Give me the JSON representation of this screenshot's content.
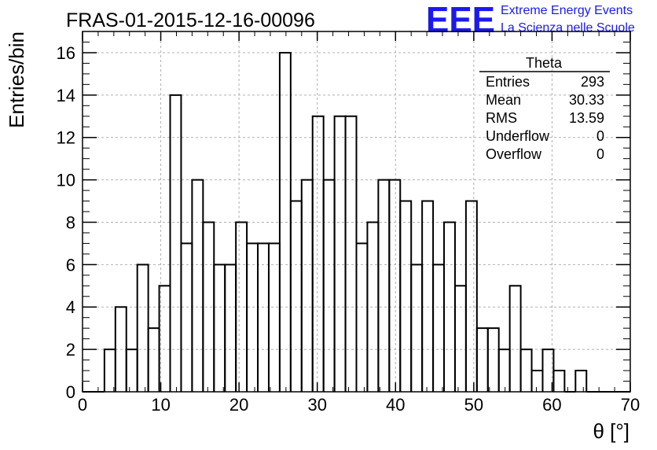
{
  "header": {
    "title": "FRAS-01-2015-12-16-00096",
    "logo_text": "EEE",
    "logo_line1": "Extreme Energy Events",
    "logo_line2": "La Scienza nelle Scuole",
    "logo_color": "#1a1aee"
  },
  "stats_box": {
    "name": "Theta",
    "rows": [
      {
        "label": "Entries",
        "value": "293"
      },
      {
        "label": "Mean",
        "value": "30.33"
      },
      {
        "label": "RMS",
        "value": "13.59"
      },
      {
        "label": "Underflow",
        "value": "0"
      },
      {
        "label": "Overflow",
        "value": "0"
      }
    ]
  },
  "chart_data": {
    "type": "bar",
    "title": "FRAS-01-2015-12-16-00096",
    "xlabel": "θ [°]",
    "ylabel": "Entries/bin",
    "xlim": [
      0,
      70
    ],
    "ylim": [
      0,
      17
    ],
    "bin_width": 1.4,
    "x_ticks": [
      0,
      10,
      20,
      30,
      40,
      50,
      60,
      70
    ],
    "y_ticks": [
      0,
      2,
      4,
      6,
      8,
      10,
      12,
      14,
      16
    ],
    "grid": true,
    "histogram_style": "step",
    "bin_low_edges": [
      0,
      1.4,
      2.8,
      4.2,
      5.6,
      7.0,
      8.4,
      9.8,
      11.2,
      12.6,
      14.0,
      15.4,
      16.8,
      18.2,
      19.6,
      21.0,
      22.4,
      23.8,
      25.2,
      26.6,
      28.0,
      29.4,
      30.8,
      32.2,
      33.6,
      35.0,
      36.4,
      37.8,
      39.2,
      40.6,
      42.0,
      43.4,
      44.8,
      46.2,
      47.6,
      49.0,
      50.4,
      51.8,
      53.2,
      54.6,
      56.0,
      57.4,
      58.8,
      60.2,
      61.6,
      63.0,
      64.4,
      65.8,
      67.2,
      68.6
    ],
    "values": [
      0,
      0,
      2,
      4,
      2,
      6,
      3,
      5,
      14,
      7,
      10,
      8,
      6,
      6,
      8,
      7,
      7,
      7,
      16,
      9,
      10,
      13,
      10,
      13,
      13,
      7,
      8,
      10,
      10,
      9,
      6,
      9,
      6,
      8,
      5,
      9,
      3,
      3,
      2,
      5,
      2,
      1,
      2,
      1,
      0,
      1,
      0,
      0,
      0,
      0
    ]
  }
}
